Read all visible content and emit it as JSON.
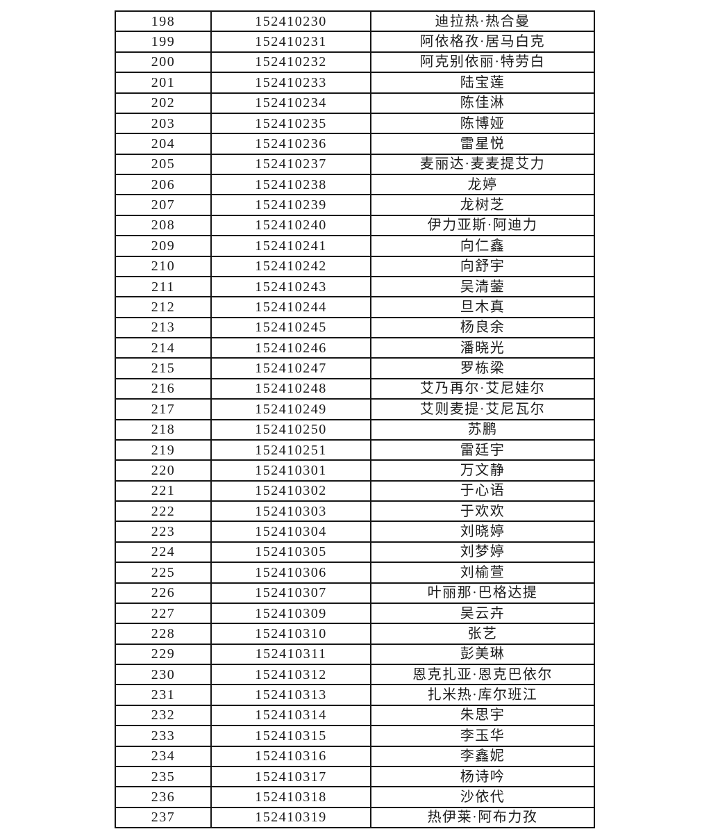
{
  "document": {
    "background_color": "#ffffff",
    "text_color": "#1c1c1c",
    "border_color": "#161616"
  },
  "table": {
    "rows": [
      [
        "198",
        "152410230",
        "迪拉热·热合曼"
      ],
      [
        "199",
        "152410231",
        "阿依格孜·居马白克"
      ],
      [
        "200",
        "152410232",
        "阿克别依丽·特劳白"
      ],
      [
        "201",
        "152410233",
        "陆宝莲"
      ],
      [
        "202",
        "152410234",
        "陈佳淋"
      ],
      [
        "203",
        "152410235",
        "陈博娅"
      ],
      [
        "204",
        "152410236",
        "雷星悦"
      ],
      [
        "205",
        "152410237",
        "麦丽达·麦麦提艾力"
      ],
      [
        "206",
        "152410238",
        "龙婷"
      ],
      [
        "207",
        "152410239",
        "龙树芝"
      ],
      [
        "208",
        "152410240",
        "伊力亚斯·阿迪力"
      ],
      [
        "209",
        "152410241",
        "向仁鑫"
      ],
      [
        "210",
        "152410242",
        "向舒宇"
      ],
      [
        "211",
        "152410243",
        "吴清蓥"
      ],
      [
        "212",
        "152410244",
        "旦木真"
      ],
      [
        "213",
        "152410245",
        "杨良余"
      ],
      [
        "214",
        "152410246",
        "潘晓光"
      ],
      [
        "215",
        "152410247",
        "罗栋梁"
      ],
      [
        "216",
        "152410248",
        "艾乃再尔·艾尼娃尔"
      ],
      [
        "217",
        "152410249",
        "艾则麦提·艾尼瓦尔"
      ],
      [
        "218",
        "152410250",
        "苏鹏"
      ],
      [
        "219",
        "152410251",
        "雷廷宇"
      ],
      [
        "220",
        "152410301",
        "万文静"
      ],
      [
        "221",
        "152410302",
        "于心语"
      ],
      [
        "222",
        "152410303",
        "于欢欢"
      ],
      [
        "223",
        "152410304",
        "刘晓婷"
      ],
      [
        "224",
        "152410305",
        "刘梦婷"
      ],
      [
        "225",
        "152410306",
        "刘榆萱"
      ],
      [
        "226",
        "152410307",
        "叶丽那·巴格达提"
      ],
      [
        "227",
        "152410309",
        "吴云卉"
      ],
      [
        "228",
        "152410310",
        "张艺"
      ],
      [
        "229",
        "152410311",
        "彭美琳"
      ],
      [
        "230",
        "152410312",
        "恩克扎亚·恩克巴依尔"
      ],
      [
        "231",
        "152410313",
        "扎米热·库尔班江"
      ],
      [
        "232",
        "152410314",
        "朱思宇"
      ],
      [
        "233",
        "152410315",
        "李玉华"
      ],
      [
        "234",
        "152410316",
        "李鑫妮"
      ],
      [
        "235",
        "152410317",
        "杨诗吟"
      ],
      [
        "236",
        "152410318",
        "沙依代"
      ],
      [
        "237",
        "152410319",
        "热伊莱·阿布力孜"
      ]
    ]
  }
}
